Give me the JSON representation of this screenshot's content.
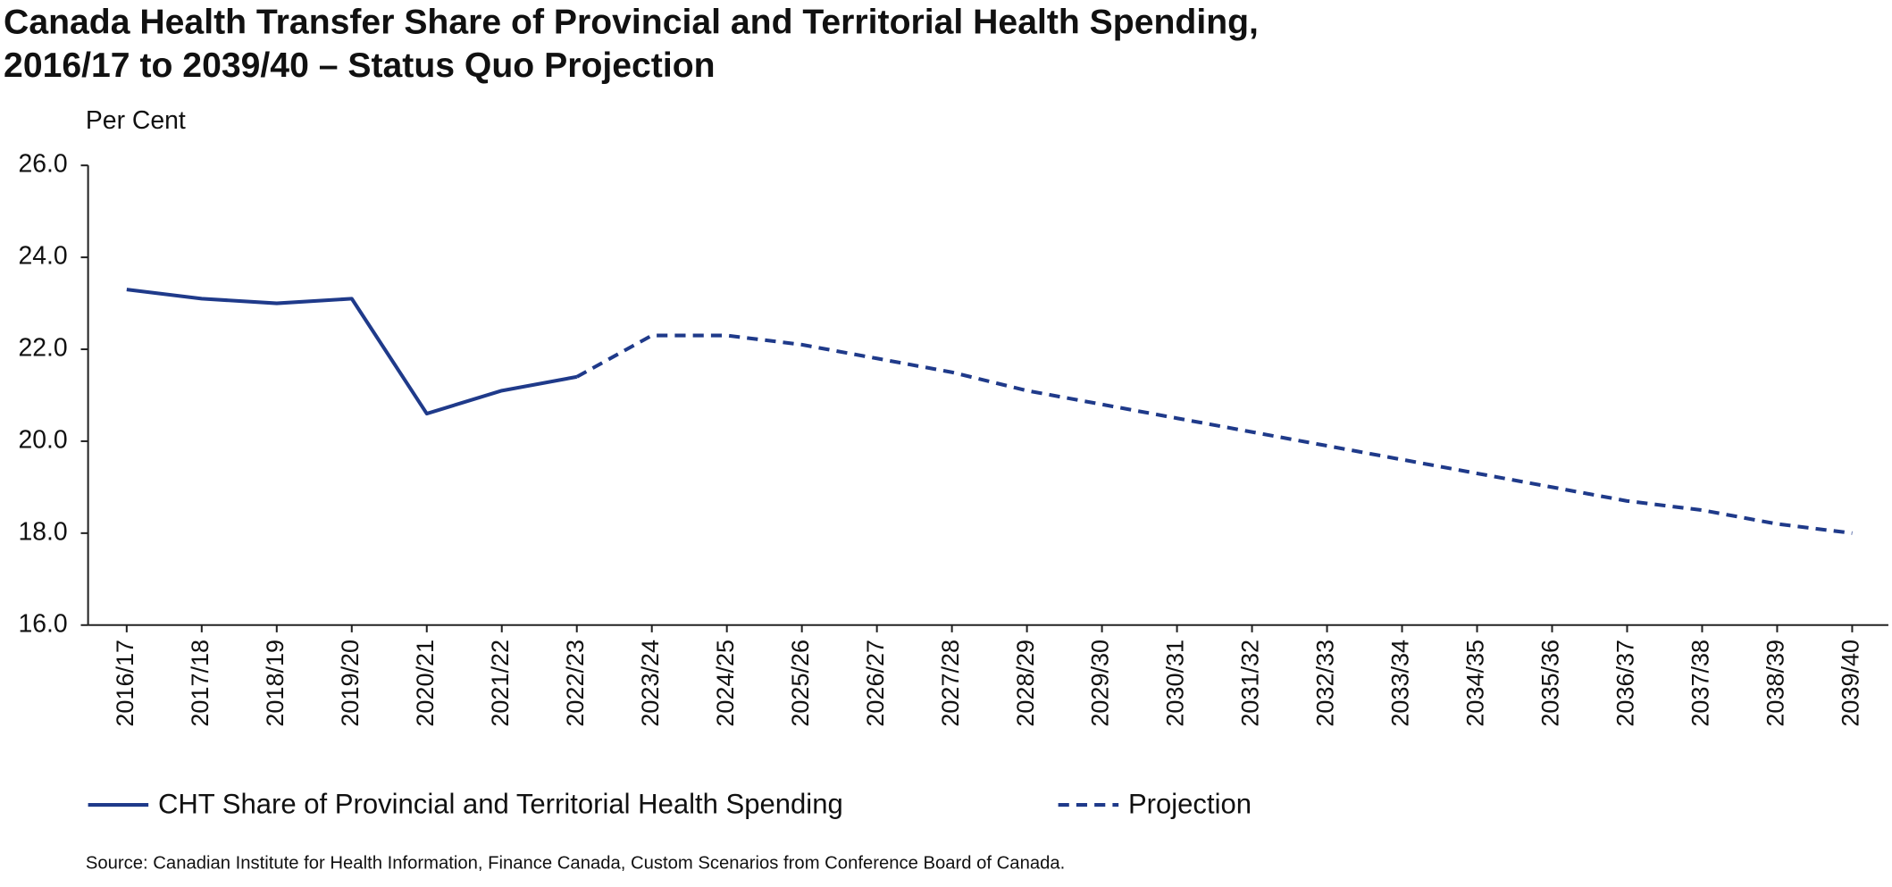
{
  "chart_data": {
    "type": "line",
    "title": [
      "Canada Health Transfer Share of Provincial and Territorial Health Spending,",
      "2016/17 to 2039/40 – Status Quo Projection"
    ],
    "y_label": "Per Cent",
    "source": "Source: Canadian Institute for Health Information, Finance Canada, Custom Scenarios from Conference Board of Canada.",
    "categories": [
      "2016/17",
      "2017/18",
      "2018/19",
      "2019/20",
      "2020/21",
      "2021/22",
      "2022/23",
      "2023/24",
      "2024/25",
      "2025/26",
      "2026/27",
      "2027/28",
      "2028/29",
      "2029/30",
      "2030/31",
      "2031/32",
      "2032/33",
      "2033/34",
      "2034/35",
      "2035/36",
      "2036/37",
      "2037/38",
      "2038/39",
      "2039/40"
    ],
    "series": [
      {
        "name": "CHT Share of Provincial and Territorial Health Spending",
        "color": "#1f3a8a",
        "style": "solid",
        "values": [
          23.3,
          23.1,
          23.0,
          23.1,
          20.6,
          21.1,
          21.4,
          null,
          null,
          null,
          null,
          null,
          null,
          null,
          null,
          null,
          null,
          null,
          null,
          null,
          null,
          null,
          null,
          null
        ]
      },
      {
        "name": "Projection",
        "color": "#1f3a8a",
        "style": "dashed",
        "values": [
          null,
          null,
          null,
          null,
          null,
          null,
          21.4,
          22.3,
          22.3,
          22.1,
          21.8,
          21.5,
          21.1,
          20.8,
          20.5,
          20.2,
          19.9,
          19.6,
          19.3,
          19.0,
          18.7,
          18.5,
          18.2,
          18.0
        ]
      }
    ],
    "ylim": [
      16,
      26
    ],
    "yticks": [
      {
        "value": 16,
        "label": "16.0"
      },
      {
        "value": 18,
        "label": "18.0"
      },
      {
        "value": 20,
        "label": "20.0"
      },
      {
        "value": 22,
        "label": "22.0"
      },
      {
        "value": 24,
        "label": "24.0"
      },
      {
        "value": 26,
        "label": "26.0"
      }
    ],
    "grid": false
  }
}
